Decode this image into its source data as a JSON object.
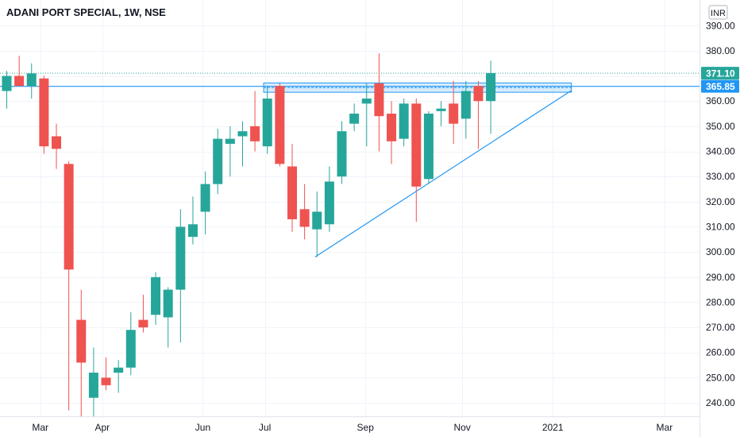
{
  "header": {
    "title": "ADANI PORT SPECIAL, 1W, NSE"
  },
  "currency_button": {
    "label": "INR"
  },
  "colors": {
    "up": "#26a69a",
    "down": "#ef5350",
    "line": "#2196f3",
    "grid": "#f0f3fa",
    "axis_text": "#131722"
  },
  "price_tags": [
    {
      "label": "371.10",
      "value": 371.1,
      "color": "#26a69a"
    },
    {
      "label": "365.85",
      "value": 365.85,
      "color": "#2196f3"
    }
  ],
  "chart_data": {
    "type": "candlestick",
    "title": "ADANI PORT SPECIAL, 1W, NSE",
    "ylim": [
      235,
      395
    ],
    "y_ticks": [
      240,
      250,
      260,
      270,
      280,
      290,
      300,
      310,
      320,
      330,
      340,
      350,
      360,
      370,
      380,
      390
    ],
    "y_tick_labels": [
      "240.00",
      "250.00",
      "260.00",
      "270.00",
      "280.00",
      "290.00",
      "300.00",
      "310.00",
      "320.00",
      "330.00",
      "340.00",
      "350.00",
      "360.00",
      "370.00",
      "380.00",
      "390.00"
    ],
    "x_labels": [
      "Mar",
      "Apr",
      "Jun",
      "Jul",
      "Sep",
      "Nov",
      "2021",
      "Mar"
    ],
    "x_label_index": [
      2.7,
      7.7,
      15.8,
      20.8,
      28.9,
      36.7,
      44.0,
      53.0
    ],
    "candles": [
      {
        "o": 364,
        "h": 372,
        "l": 357,
        "c": 370
      },
      {
        "o": 370,
        "h": 378,
        "l": 366,
        "c": 366
      },
      {
        "o": 366,
        "h": 375,
        "l": 361,
        "c": 371
      },
      {
        "o": 369,
        "h": 370,
        "l": 339,
        "c": 342
      },
      {
        "o": 346,
        "h": 351,
        "l": 333,
        "c": 341
      },
      {
        "o": 335,
        "h": 336,
        "l": 237,
        "c": 293
      },
      {
        "o": 273,
        "h": 285,
        "l": 233,
        "c": 256
      },
      {
        "o": 242,
        "h": 262,
        "l": 229,
        "c": 252
      },
      {
        "o": 250,
        "h": 258,
        "l": 245,
        "c": 247
      },
      {
        "o": 252,
        "h": 257,
        "l": 244,
        "c": 254
      },
      {
        "o": 254,
        "h": 276,
        "l": 251,
        "c": 269
      },
      {
        "o": 273,
        "h": 283,
        "l": 268,
        "c": 270
      },
      {
        "o": 275,
        "h": 292,
        "l": 271,
        "c": 290
      },
      {
        "o": 274,
        "h": 286,
        "l": 262,
        "c": 285
      },
      {
        "o": 285,
        "h": 317,
        "l": 264,
        "c": 310
      },
      {
        "o": 306,
        "h": 322,
        "l": 303,
        "c": 311
      },
      {
        "o": 316,
        "h": 332,
        "l": 307,
        "c": 327
      },
      {
        "o": 327,
        "h": 349,
        "l": 323,
        "c": 345
      },
      {
        "o": 343,
        "h": 350,
        "l": 330,
        "c": 345
      },
      {
        "o": 346,
        "h": 352,
        "l": 334,
        "c": 348
      },
      {
        "o": 350,
        "h": 364,
        "l": 340,
        "c": 344
      },
      {
        "o": 342,
        "h": 366,
        "l": 339,
        "c": 361
      },
      {
        "o": 366,
        "h": 367,
        "l": 334,
        "c": 335
      },
      {
        "o": 334,
        "h": 343,
        "l": 308,
        "c": 313
      },
      {
        "o": 317,
        "h": 327,
        "l": 305,
        "c": 310
      },
      {
        "o": 309,
        "h": 324,
        "l": 298,
        "c": 316
      },
      {
        "o": 311,
        "h": 334,
        "l": 308,
        "c": 328
      },
      {
        "o": 330,
        "h": 352,
        "l": 327,
        "c": 348
      },
      {
        "o": 351,
        "h": 359,
        "l": 348,
        "c": 355
      },
      {
        "o": 359,
        "h": 367,
        "l": 342,
        "c": 361
      },
      {
        "o": 367,
        "h": 379,
        "l": 340,
        "c": 354
      },
      {
        "o": 355,
        "h": 360,
        "l": 335,
        "c": 344
      },
      {
        "o": 345,
        "h": 361,
        "l": 342,
        "c": 359
      },
      {
        "o": 359,
        "h": 361,
        "l": 312,
        "c": 326
      },
      {
        "o": 329,
        "h": 356,
        "l": 327,
        "c": 355
      },
      {
        "o": 356,
        "h": 360,
        "l": 350,
        "c": 357
      },
      {
        "o": 359,
        "h": 368,
        "l": 343,
        "c": 351
      },
      {
        "o": 353,
        "h": 368,
        "l": 345,
        "c": 364
      },
      {
        "o": 366,
        "h": 368,
        "l": 341,
        "c": 360
      },
      {
        "o": 360,
        "h": 376,
        "l": 347,
        "c": 371.1
      }
    ],
    "horizontal_lines": [
      {
        "value": 371.1,
        "style": "dotted",
        "color": "#26a69a"
      },
      {
        "value": 365.85,
        "style": "solid",
        "color": "#2196f3"
      }
    ],
    "zone": {
      "from_index": 20.7,
      "to_index": 45.5,
      "top": 367.2,
      "bottom": 363.5
    },
    "trendline": {
      "x1": 24.85,
      "y1": 298,
      "x2": 45.5,
      "y2": 364.2
    }
  }
}
